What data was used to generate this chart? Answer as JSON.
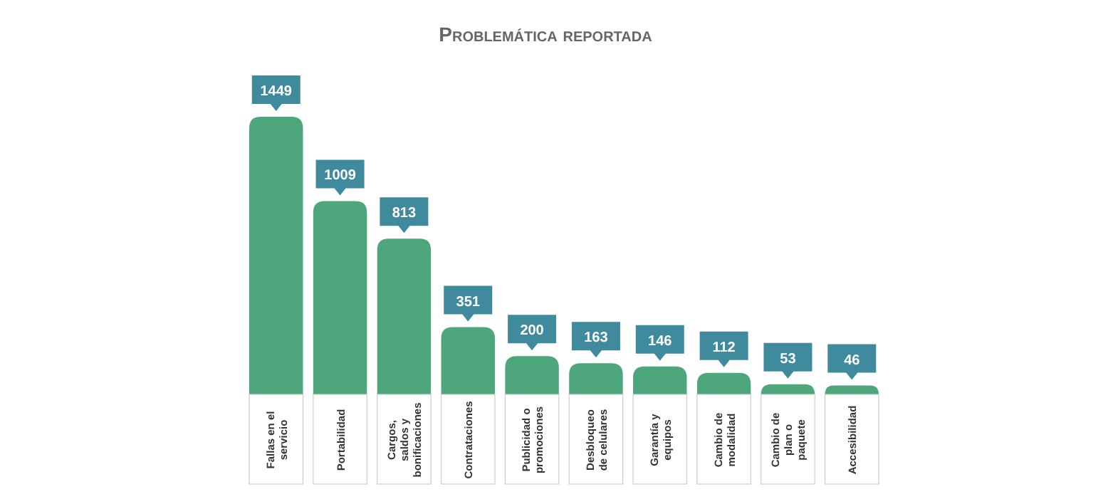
{
  "chart_data": {
    "type": "bar",
    "title": "Problemática reportada",
    "categories": [
      "Fallas en el servicio",
      "Portabilidad",
      "Cargos, saldos y bonificaciones",
      "Contrataciones",
      "Publicidad o promociones",
      "Desbloqueo de celulares",
      "Garantía y equipos",
      "Cambio de modalidad",
      "Cambio de plan o paquete",
      "Accesibilidad"
    ],
    "values": [
      1449,
      1009,
      813,
      351,
      200,
      163,
      146,
      112,
      53,
      46
    ],
    "color": "#4ea67c",
    "data_labels": true,
    "grid": false
  }
}
